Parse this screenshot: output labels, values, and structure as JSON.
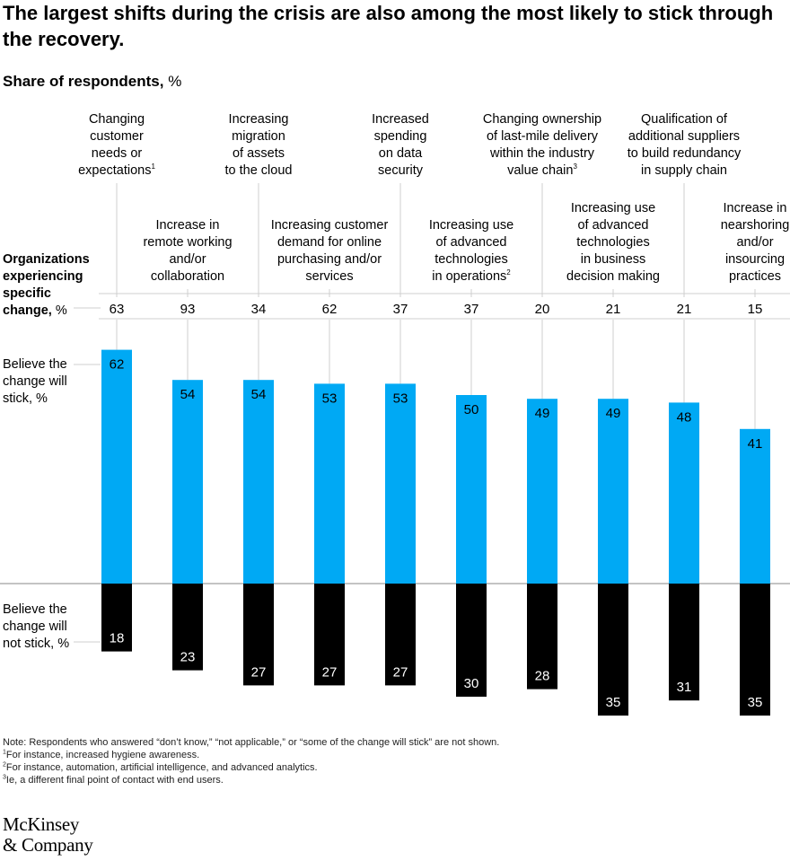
{
  "title": "The largest shifts during the crisis are also among the most likely to stick through the recovery.",
  "subtitle_bold": "Share of respondents,",
  "subtitle_unit": "%",
  "row_labels": {
    "experiencing": "Organizations\nexperiencing\nspecific\nchange,",
    "experiencing_unit": "%",
    "stick": "Believe the\nchange will\nstick, %",
    "not_stick": "Believe the\nchange will\nnot stick, %"
  },
  "chart_data": {
    "type": "bar",
    "orientation": "diverging-vertical",
    "categories": [
      "Changing customer needs or expectations",
      "Increase in remote working and/or collaboration",
      "Increasing migration of assets to the cloud",
      "Increasing customer demand for online purchasing and/or services",
      "Increased spending on data security",
      "Increasing use of advanced technologies in operations",
      "Changing ownership of last-mile delivery within the industry value chain",
      "Increasing use of advanced technologies in business decision making",
      "Qualification of additional suppliers to build redundancy in supply chain",
      "Increase in nearshoring and/or insourcing practices"
    ],
    "category_label_lines": [
      [
        "Changing",
        "customer",
        "needs or",
        "expectations"
      ],
      [
        "Increase in",
        "remote working",
        "and/or",
        "collaboration"
      ],
      [
        "Increasing",
        "migration",
        "of assets",
        "to the cloud"
      ],
      [
        "Increasing customer",
        "demand for online",
        "purchasing and/or",
        "services"
      ],
      [
        "Increased",
        "spending",
        "on data",
        "security"
      ],
      [
        "Increasing use",
        "of advanced",
        "technologies",
        "in operations"
      ],
      [
        "Changing ownership",
        "of last-mile delivery",
        "within the industry",
        "value chain"
      ],
      [
        "Increasing use",
        "of advanced",
        "technologies",
        "in business",
        "decision making"
      ],
      [
        "Qualification of",
        "additional suppliers",
        "to build redundancy",
        "in supply chain"
      ],
      [
        "Increase in",
        "nearshoring",
        "and/or",
        "insourcing",
        "practices"
      ]
    ],
    "category_footnotes": [
      "1",
      "",
      "",
      "",
      "",
      "2",
      "3",
      "",
      "",
      ""
    ],
    "experiencing_change": [
      63,
      93,
      34,
      62,
      37,
      37,
      20,
      21,
      21,
      15
    ],
    "series": [
      {
        "name": "Believe the change will stick, %",
        "values": [
          62,
          54,
          54,
          53,
          53,
          50,
          49,
          49,
          48,
          41
        ],
        "color": "#00A9F4"
      },
      {
        "name": "Believe the change will not stick, %",
        "values": [
          18,
          23,
          27,
          27,
          27,
          30,
          28,
          35,
          31,
          35
        ],
        "color": "#000000"
      }
    ],
    "ylim": [
      -35,
      62
    ]
  },
  "notes": {
    "note": "Note: Respondents who answered “don’t know,” “not applicable,” or “some of the change will stick” are not shown.",
    "fn1_mark": "1",
    "fn1": "For instance, increased hygiene awareness.",
    "fn2_mark": "2",
    "fn2": "For instance, automation, artificial intelligence, and advanced analytics.",
    "fn3_mark": "3",
    "fn3": "Ie, a different final point of contact with end users."
  },
  "logo": {
    "line1": "McKinsey",
    "line2": "& Company"
  },
  "colors": {
    "stick": "#00A9F4",
    "not_stick": "#000000",
    "grid": "#cfcfcf"
  }
}
